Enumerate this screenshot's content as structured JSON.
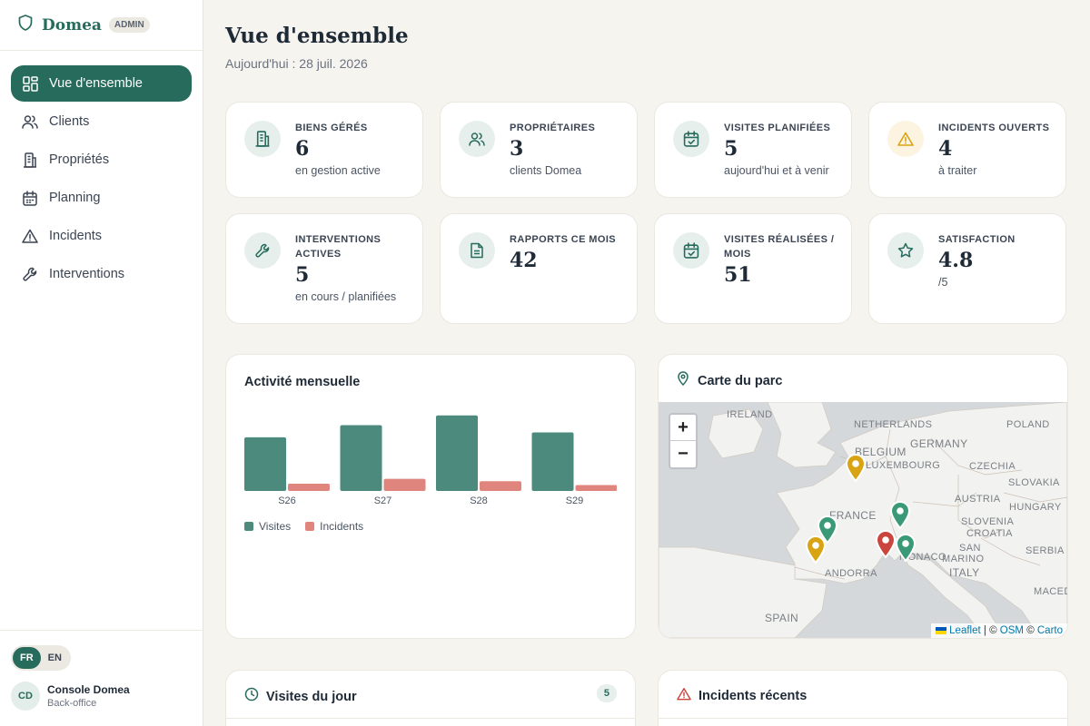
{
  "brand": {
    "name": "Domea",
    "badge": "ADMIN"
  },
  "nav": [
    {
      "label": "Vue d'ensemble",
      "icon": "dashboard-icon",
      "active": true
    },
    {
      "label": "Clients",
      "icon": "users-icon"
    },
    {
      "label": "Propriétés",
      "icon": "building-icon"
    },
    {
      "label": "Planning",
      "icon": "calendar-icon"
    },
    {
      "label": "Incidents",
      "icon": "warning-icon"
    },
    {
      "label": "Interventions",
      "icon": "wrench-icon"
    }
  ],
  "lang": {
    "fr": "FR",
    "en": "EN"
  },
  "user": {
    "initials": "CD",
    "name": "Console Domea",
    "role": "Back-office"
  },
  "header": {
    "title": "Vue d'ensemble",
    "subtitle": "Aujourd'hui : 28 juil. 2026"
  },
  "stats": [
    {
      "label": "BIENS GÉRÉS",
      "value": "6",
      "note": "en gestion active",
      "icon": "building-icon"
    },
    {
      "label": "PROPRIÉTAIRES",
      "value": "3",
      "note": "clients Domea",
      "icon": "users-icon"
    },
    {
      "label": "VISITES PLANIFIÉES",
      "value": "5",
      "note": "aujourd'hui et à venir",
      "icon": "calendar-check-icon"
    },
    {
      "label": "INCIDENTS OUVERTS",
      "value": "4",
      "note": "à traiter",
      "icon": "warning-icon"
    },
    {
      "label": "INTERVENTIONS ACTIVES",
      "value": "5",
      "note": "en cours / planifiées",
      "icon": "wrench-icon"
    },
    {
      "label": "RAPPORTS CE MOIS",
      "value": "42",
      "note": "",
      "icon": "document-icon"
    },
    {
      "label": "VISITES RÉALISÉES / MOIS",
      "value": "51",
      "note": "",
      "icon": "calendar-check-icon"
    },
    {
      "label": "SATISFACTION",
      "value": "4.8",
      "note": "/5",
      "icon": "star-icon"
    }
  ],
  "activity": {
    "title": "Activité mensuelle"
  },
  "chart_data": {
    "type": "bar",
    "categories": [
      "S26",
      "S27",
      "S28",
      "S29"
    ],
    "series": [
      {
        "name": "Visites",
        "values": [
          11,
          13.5,
          15.5,
          12
        ],
        "color": "#4c8a7e"
      },
      {
        "name": "Incidents",
        "values": [
          1.5,
          2.5,
          2,
          1.2
        ],
        "color": "#e0857d"
      }
    ],
    "ylim": [
      0,
      16
    ],
    "legend": "bottom-left"
  },
  "map": {
    "title": "Carte du parc",
    "zoom_in": "+",
    "zoom_out": "−",
    "attrib_leaflet": "Leaflet",
    "attrib_osm": "OSM",
    "attrib_carto": "Carto",
    "attrib_sep": "|",
    "attrib_copy": "©",
    "labels": [
      "IRELAND",
      "NETHERLANDS",
      "POLAND",
      "BELGIUM",
      "GERMANY",
      "LUXEMBOURG",
      "CZECHIA",
      "SLOVAKIA",
      "AUSTRIA",
      "HUNGARY",
      "FRANCE",
      "SLOVENIA",
      "CROATIA",
      "SAN",
      "MARINO",
      "SERBIA",
      "MONACO",
      "ANDORRA",
      "ITALY",
      "MACEDON",
      "SPAIN"
    ],
    "marker_colors": {
      "green": "#3a9a78",
      "yellow": "#d9a413",
      "red": "#c9453d"
    }
  },
  "visits_today": {
    "title": "Visites du jour",
    "count": "5"
  },
  "recent_incidents": {
    "title": "Incidents récents"
  }
}
